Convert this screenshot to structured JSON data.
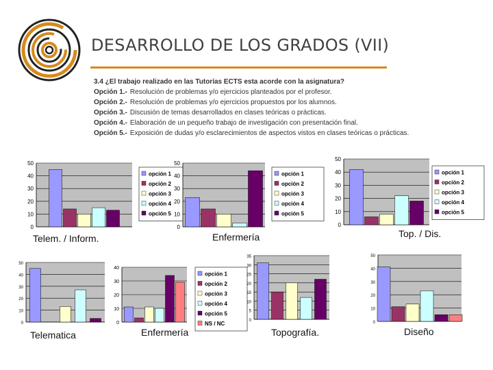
{
  "title": "DESARROLLO DE LOS GRADOS (VII)",
  "question": "3.4 ¿El trabajo realizado en las Tutorías ECTS esta acorde con la asignatura?",
  "options": [
    {
      "label": "Opción 1.-",
      "text": "Resolución de problemas y/o ejercicios planteados por el profesor."
    },
    {
      "label": "Opción 2.-",
      "text": "Resolución de problemas y/o ejercicios propuestos por los alumnos."
    },
    {
      "label": "Opción 3.-",
      "text": "Discusión de temas desarrollados en clases teóricas o prácticas."
    },
    {
      "label": "Opción 4.-",
      "text": "Elaboración de un pequeño trabajo de investigación con presentación final."
    },
    {
      "label": "Opción 5.-",
      "text": "Exposición de dudas y/o esclarecimientos de aspectos vistos en clases teóricas o prácticas."
    }
  ],
  "colors": [
    "#9999ff",
    "#993366",
    "#ffffcc",
    "#ccffff",
    "#660066",
    "#ff8080"
  ],
  "chart_data": [
    {
      "type": "bar",
      "title": "Telem. / Inform.",
      "categories": [
        "opción 1",
        "opción 2",
        "opción 3",
        "opción 4",
        "opción 5"
      ],
      "values": [
        45,
        14,
        10,
        15,
        13
      ],
      "ylim": [
        0,
        50
      ],
      "yticks": [
        0,
        10,
        20,
        30,
        40,
        50
      ],
      "legend": "right"
    },
    {
      "type": "bar",
      "title": "Enfermería",
      "categories": [
        "opción 1",
        "opción 2",
        "opción 3",
        "opción 4",
        "opción 5"
      ],
      "values": [
        23,
        14,
        10,
        3,
        44
      ],
      "ylim": [
        0,
        50
      ],
      "yticks": [
        0,
        10,
        20,
        30,
        40,
        50
      ],
      "legend": "right"
    },
    {
      "type": "bar",
      "title": "Top. / Dis.",
      "categories": [
        "opción 1",
        "opción 2",
        "opción 3",
        "opción 4",
        "opción 5"
      ],
      "values": [
        42,
        6,
        8,
        22,
        18
      ],
      "ylim": [
        0,
        50
      ],
      "yticks": [
        0,
        10,
        20,
        30,
        40,
        50
      ],
      "legend": "right"
    },
    {
      "type": "bar",
      "title": "Telematica",
      "categories": [
        "opción 1",
        "opción 2",
        "opción 3",
        "opción 4",
        "opción 5"
      ],
      "values": [
        45,
        0,
        13,
        27,
        3
      ],
      "ylim": [
        0,
        50
      ],
      "yticks": [
        0,
        10,
        20,
        30,
        40,
        50
      ],
      "legend": "none"
    },
    {
      "type": "bar",
      "title": "Enfermería",
      "categories": [
        "opción 1",
        "opción 2",
        "opción 3",
        "opción 4",
        "opción 5",
        "NS / NC"
      ],
      "values": [
        11,
        3,
        11,
        10,
        34,
        29
      ],
      "ylim": [
        0,
        40
      ],
      "yticks": [
        0,
        10,
        20,
        30,
        40
      ],
      "legend": "right"
    },
    {
      "type": "bar",
      "title": "Topografía.",
      "categories": [
        "opción 1",
        "opción 2",
        "opción 3",
        "opción 4",
        "opción 5"
      ],
      "values": [
        31,
        15,
        20,
        12,
        22
      ],
      "ylim": [
        0,
        35
      ],
      "yticks": [
        0,
        5,
        10,
        15,
        20,
        25,
        30,
        35
      ],
      "legend": "none"
    },
    {
      "type": "bar",
      "title": "Diseño",
      "categories": [
        "opción 1",
        "opción 2",
        "opción 3",
        "opción 4",
        "opción 5",
        "NS / NC"
      ],
      "values": [
        41,
        11,
        13,
        23,
        5,
        5
      ],
      "ylim": [
        0,
        50
      ],
      "yticks": [
        0,
        10,
        20,
        30,
        40,
        50
      ],
      "legend": "none"
    }
  ]
}
